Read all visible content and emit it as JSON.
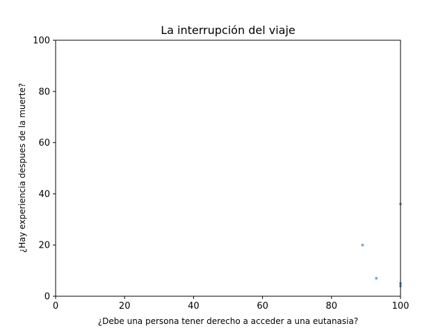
{
  "chart_data": {
    "type": "scatter",
    "title": "La interrupción del viaje",
    "xlabel": "¿Debe una persona tener derecho a acceder a una eutanasia?",
    "ylabel": "¿Hay experiencia despues de la muerte?",
    "xlim": [
      0,
      100
    ],
    "ylim": [
      0,
      100
    ],
    "xticks": [
      "0",
      "20",
      "40",
      "60",
      "80",
      "100"
    ],
    "yticks": [
      "0",
      "20",
      "40",
      "60",
      "80",
      "100"
    ],
    "grid": false,
    "point_color": "#1f77b4",
    "points": [
      {
        "x": 89,
        "y": 20
      },
      {
        "x": 93,
        "y": 7
      },
      {
        "x": 100,
        "y": 4
      },
      {
        "x": 100,
        "y": 5
      },
      {
        "x": 100,
        "y": 36
      }
    ]
  }
}
